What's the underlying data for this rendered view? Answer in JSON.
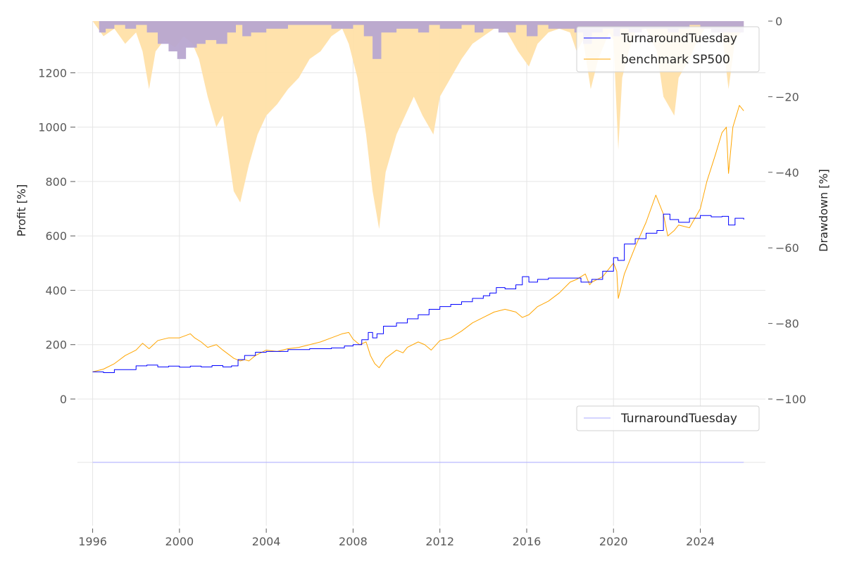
{
  "colors": {
    "strategy": "#0000ff",
    "benchmark": "#ffa500",
    "strategy_drawdown": "#aaaaff",
    "benchmark_drawdown": "#ffe0a8",
    "overlap_drawdown": "#c4a6ad",
    "grid": "#e5e5e5",
    "legend_border": "#d0d0d0"
  },
  "chart_data": [
    {
      "type": "line",
      "title": "",
      "xlabel": "",
      "ylabel": "Profit [%]",
      "y2label": "Drawdown [%]",
      "xlim": [
        1995.3,
        2027.0
      ],
      "ylim": [
        0,
        1390
      ],
      "y2lim": [
        -100,
        0
      ],
      "x_ticks": [
        1996,
        2000,
        2004,
        2008,
        2012,
        2016,
        2020,
        2024
      ],
      "x_tick_labels": [
        "1996",
        "2000",
        "2004",
        "2008",
        "2012",
        "2016",
        "2020",
        "2024"
      ],
      "y_ticks": [
        0,
        200,
        400,
        600,
        800,
        1000,
        1200
      ],
      "y_tick_labels": [
        "0",
        "200",
        "400",
        "600",
        "800",
        "1000",
        "1200"
      ],
      "y2_ticks": [
        0,
        -20,
        -40,
        -60,
        -80,
        -100
      ],
      "y2_tick_labels": [
        "0",
        "−20",
        "−40",
        "−60",
        "−80",
        "−100"
      ],
      "legend": [
        "TurnaroundTuesday",
        "benchmark SP500"
      ],
      "legend_position": "top-right",
      "series": [
        {
          "name": "TurnaroundTuesday",
          "x": [
            1996.0,
            1996.5,
            1997.0,
            1998.0,
            1998.5,
            1999.0,
            1999.5,
            2000.0,
            2000.5,
            2001.0,
            2001.5,
            2002.0,
            2002.4,
            2002.7,
            2003.0,
            2003.5,
            2004.0,
            2005.0,
            2006.0,
            2007.0,
            2007.6,
            2008.0,
            2008.4,
            2008.7,
            2008.9,
            2009.1,
            2009.4,
            2010.0,
            2010.5,
            2011.0,
            2011.5,
            2012.0,
            2012.5,
            2013.0,
            2013.5,
            2014.0,
            2014.3,
            2014.6,
            2015.0,
            2015.5,
            2015.8,
            2016.1,
            2016.5,
            2017.0,
            2018.0,
            2018.5,
            2019.0,
            2019.5,
            2020.0,
            2020.2,
            2020.5,
            2021.0,
            2021.5,
            2022.0,
            2022.3,
            2022.6,
            2023.0,
            2023.5,
            2024.0,
            2024.5,
            2025.0,
            2025.3,
            2025.6,
            2026.0
          ],
          "values": [
            100,
            97,
            108,
            122,
            125,
            118,
            121,
            117,
            121,
            118,
            123,
            118,
            122,
            145,
            160,
            172,
            175,
            182,
            185,
            188,
            195,
            200,
            218,
            245,
            225,
            240,
            268,
            280,
            295,
            310,
            330,
            340,
            348,
            358,
            370,
            380,
            390,
            410,
            405,
            420,
            450,
            430,
            440,
            445,
            445,
            430,
            440,
            470,
            520,
            510,
            570,
            590,
            610,
            620,
            680,
            660,
            650,
            665,
            675,
            670,
            672,
            640,
            665,
            660
          ]
        },
        {
          "name": "benchmark SP500",
          "x": [
            1996.0,
            1996.5,
            1997.0,
            1997.5,
            1998.0,
            1998.3,
            1998.6,
            1998.8,
            1999.0,
            1999.5,
            2000.0,
            2000.5,
            2000.7,
            2001.0,
            2001.3,
            2001.7,
            2002.0,
            2002.5,
            2002.8,
            2003.0,
            2003.2,
            2003.5,
            2004.0,
            2004.5,
            2005.0,
            2005.5,
            2006.0,
            2006.5,
            2007.0,
            2007.5,
            2007.8,
            2008.0,
            2008.3,
            2008.6,
            2008.8,
            2009.0,
            2009.2,
            2009.5,
            2010.0,
            2010.3,
            2010.5,
            2011.0,
            2011.3,
            2011.6,
            2012.0,
            2012.5,
            2013.0,
            2013.5,
            2014.0,
            2014.5,
            2015.0,
            2015.5,
            2015.8,
            2016.1,
            2016.5,
            2017.0,
            2017.5,
            2018.0,
            2018.3,
            2018.7,
            2018.9,
            2019.0,
            2019.5,
            2020.0,
            2020.15,
            2020.22,
            2020.5,
            2021.0,
            2021.5,
            2021.95,
            2022.3,
            2022.5,
            2022.8,
            2023.0,
            2023.5,
            2024.0,
            2024.3,
            2024.7,
            2025.0,
            2025.2,
            2025.3,
            2025.5,
            2025.8,
            2026.0
          ],
          "values": [
            100,
            110,
            130,
            160,
            180,
            205,
            185,
            200,
            215,
            225,
            225,
            240,
            225,
            210,
            190,
            200,
            180,
            150,
            140,
            145,
            140,
            160,
            180,
            175,
            185,
            190,
            200,
            210,
            225,
            240,
            245,
            220,
            200,
            210,
            160,
            130,
            115,
            150,
            180,
            170,
            190,
            210,
            200,
            180,
            215,
            225,
            250,
            280,
            300,
            320,
            330,
            320,
            300,
            310,
            340,
            360,
            390,
            430,
            440,
            460,
            420,
            430,
            450,
            500,
            470,
            370,
            460,
            560,
            650,
            750,
            680,
            600,
            620,
            640,
            630,
            700,
            800,
            900,
            980,
            1000,
            830,
            1000,
            1080,
            1060
          ]
        }
      ],
      "drawdown_series": [
        {
          "name": "TurnaroundTuesday drawdown",
          "x": [
            1996.0,
            1996.3,
            1996.6,
            1997.0,
            1997.5,
            1998.0,
            1998.5,
            1999.0,
            1999.5,
            1999.9,
            2000.3,
            2000.8,
            2001.2,
            2001.7,
            2002.2,
            2002.6,
            2002.9,
            2003.3,
            2004.0,
            2005.0,
            2006.0,
            2007.0,
            2008.0,
            2008.5,
            2008.9,
            2009.3,
            2010.0,
            2011.0,
            2011.5,
            2012.0,
            2013.0,
            2013.6,
            2014.0,
            2014.7,
            2015.5,
            2016.0,
            2016.5,
            2017.0,
            2017.8,
            2018.2,
            2018.6,
            2019.0,
            2019.5,
            2020.0,
            2020.3,
            2020.7,
            2021.3,
            2022.0,
            2022.5,
            2023.0,
            2023.5,
            2024.0,
            2024.5,
            2025.0,
            2025.5,
            2026.0
          ],
          "values": [
            0,
            -3,
            -2,
            -1,
            -2,
            -1,
            -3,
            -6,
            -8,
            -10,
            -7,
            -6,
            -5,
            -6,
            -3,
            -1,
            -4,
            -3,
            -2,
            -1,
            -1,
            -2,
            -1,
            -4,
            -10,
            -3,
            -2,
            -3,
            -1,
            -2,
            -1,
            -3,
            -2,
            -3,
            -1,
            -4,
            -1,
            -2,
            -2,
            -3,
            -6,
            -3,
            -2,
            -4,
            -2,
            -3,
            -2,
            -2,
            -3,
            -2,
            -1,
            -2,
            -3,
            -3,
            -3,
            -3
          ]
        },
        {
          "name": "benchmark SP500 drawdown",
          "x": [
            1996.0,
            1996.5,
            1997.0,
            1997.5,
            1998.0,
            1998.3,
            1998.6,
            1998.9,
            1999.3,
            1999.8,
            2000.2,
            2000.6,
            2000.9,
            2001.3,
            2001.7,
            2002.0,
            2002.5,
            2002.8,
            2003.2,
            2003.6,
            2004.0,
            2004.5,
            2005.0,
            2005.5,
            2006.0,
            2006.5,
            2007.0,
            2007.5,
            2007.8,
            2008.2,
            2008.6,
            2008.9,
            2009.2,
            2009.5,
            2010.0,
            2010.4,
            2010.8,
            2011.2,
            2011.7,
            2012.0,
            2012.5,
            2013.0,
            2013.5,
            2014.0,
            2014.5,
            2015.0,
            2015.6,
            2016.1,
            2016.5,
            2017.0,
            2017.5,
            2018.0,
            2018.3,
            2018.6,
            2018.95,
            2019.3,
            2019.8,
            2020.0,
            2020.22,
            2020.4,
            2020.7,
            2021.0,
            2021.5,
            2022.0,
            2022.3,
            2022.8,
            2023.0,
            2023.5,
            2023.8,
            2024.2,
            2024.6,
            2025.0,
            2025.3,
            2025.6,
            2026.0
          ],
          "values": [
            0,
            -4,
            -2,
            -6,
            -3,
            -8,
            -18,
            -8,
            -5,
            -7,
            -4,
            -6,
            -10,
            -20,
            -28,
            -25,
            -45,
            -48,
            -38,
            -30,
            -25,
            -22,
            -18,
            -15,
            -10,
            -8,
            -4,
            -2,
            -6,
            -15,
            -30,
            -45,
            -55,
            -40,
            -30,
            -25,
            -20,
            -25,
            -30,
            -20,
            -15,
            -10,
            -6,
            -4,
            -2,
            -2,
            -8,
            -12,
            -6,
            -3,
            -2,
            -3,
            -8,
            -5,
            -18,
            -10,
            -3,
            -5,
            -34,
            -15,
            -8,
            -3,
            -2,
            -8,
            -20,
            -25,
            -15,
            -10,
            -6,
            -2,
            -2,
            -3,
            -18,
            -5,
            -2
          ]
        }
      ]
    },
    {
      "type": "line",
      "title": "",
      "xlabel": "",
      "ylabel": "",
      "xlim": [
        1995.3,
        2027.0
      ],
      "ylim": [
        -1,
        1
      ],
      "legend": [
        "TurnaroundTuesday"
      ],
      "legend_position": "top-right",
      "series": [
        {
          "name": "TurnaroundTuesday",
          "x": [
            1996.0,
            2026.0
          ],
          "values": [
            0,
            0
          ]
        }
      ]
    }
  ]
}
